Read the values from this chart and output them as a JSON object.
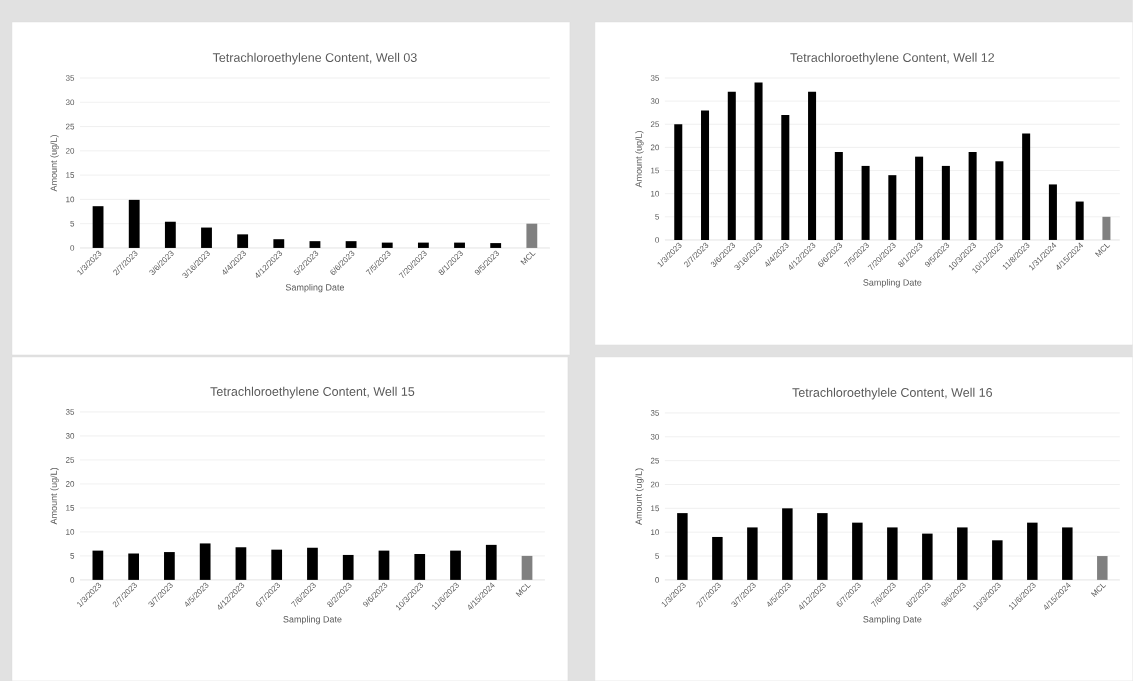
{
  "chart_data": [
    {
      "type": "bar",
      "title": "Tetrachloroethylene Content, Well 03",
      "xlabel": "Sampling Date",
      "ylabel": "Amount (ug/L)",
      "categories": [
        "1/3/2023",
        "2/7/2023",
        "3/6/2023",
        "3/16/2023",
        "4/4/2023",
        "4/12/2023",
        "5/2/2023",
        "6/6/2023",
        "7/5/2023",
        "7/20/2023",
        "8/1/2023",
        "9/5/2023",
        "MCL"
      ],
      "values": [
        8.6,
        9.9,
        5.4,
        4.2,
        2.8,
        1.8,
        1.4,
        1.4,
        1.1,
        1.1,
        1.1,
        1.0,
        5
      ],
      "colors": [
        "#000000",
        "#000000",
        "#000000",
        "#000000",
        "#000000",
        "#000000",
        "#000000",
        "#000000",
        "#000000",
        "#000000",
        "#000000",
        "#000000",
        "#808080"
      ],
      "ylim": [
        0,
        35
      ],
      "yticks": [
        0,
        5,
        10,
        15,
        20,
        25,
        30,
        35
      ],
      "grid": "y"
    },
    {
      "type": "bar",
      "title": "Tetrachloroethylene Content, Well 12",
      "xlabel": "Sampling Date",
      "ylabel": "Amount (ug/L)",
      "categories": [
        "1/3/2023",
        "2/7/2023",
        "3/6/2023",
        "3/16/2023",
        "4/4/2023",
        "4/12/2023",
        "6/6/2023",
        "7/5/2023",
        "7/20/2023",
        "8/1/2023",
        "9/5/2023",
        "10/3/2023",
        "10/12/2023",
        "11/8/2023",
        "1/31/2024",
        "4/15/2024",
        "MCL"
      ],
      "values": [
        25,
        28,
        32,
        34,
        27,
        32,
        19,
        16,
        14,
        18,
        16,
        19,
        17,
        23,
        12,
        8.3,
        5
      ],
      "colors": [
        "#000000",
        "#000000",
        "#000000",
        "#000000",
        "#000000",
        "#000000",
        "#000000",
        "#000000",
        "#000000",
        "#000000",
        "#000000",
        "#000000",
        "#000000",
        "#000000",
        "#000000",
        "#000000",
        "#808080"
      ],
      "ylim": [
        0,
        35
      ],
      "yticks": [
        0,
        5,
        10,
        15,
        20,
        25,
        30,
        35
      ],
      "grid": "y"
    },
    {
      "type": "bar",
      "title": "Tetrachloroethylene Content, Well 15",
      "xlabel": "Sampling Date",
      "ylabel": "Amount (ug/L)",
      "categories": [
        "1/3/2023",
        "2/7/2023",
        "3/7/2023",
        "4/5/2023",
        "4/12/2023",
        "6/7/2023",
        "7/6/2023",
        "8/2/2023",
        "9/6/2023",
        "10/3/2023",
        "11/6/2023",
        "4/15/2024",
        "MCL"
      ],
      "values": [
        6.1,
        5.5,
        5.8,
        7.6,
        6.8,
        6.3,
        6.7,
        5.2,
        6.1,
        5.4,
        6.1,
        7.3,
        5
      ],
      "colors": [
        "#000000",
        "#000000",
        "#000000",
        "#000000",
        "#000000",
        "#000000",
        "#000000",
        "#000000",
        "#000000",
        "#000000",
        "#000000",
        "#000000",
        "#808080"
      ],
      "ylim": [
        0,
        35
      ],
      "yticks": [
        0,
        5,
        10,
        15,
        20,
        25,
        30,
        35
      ],
      "grid": "y"
    },
    {
      "type": "bar",
      "title": "Tetrachloroethylele Content, Well 16",
      "xlabel": "Sampling Date",
      "ylabel": "Amount (ug/L)",
      "categories": [
        "1/3/2023",
        "2/7/2023",
        "3/7/2023",
        "4/5/2023",
        "4/12/2023",
        "6/7/2023",
        "7/6/2023",
        "8/2/2023",
        "9/6/2023",
        "10/3/2023",
        "11/6/2023",
        "4/15/2024",
        "MCL"
      ],
      "values": [
        14,
        9,
        11,
        15,
        14,
        12,
        11,
        9.7,
        11,
        8.3,
        12,
        11,
        5
      ],
      "colors": [
        "#000000",
        "#000000",
        "#000000",
        "#000000",
        "#000000",
        "#000000",
        "#000000",
        "#000000",
        "#000000",
        "#000000",
        "#000000",
        "#000000",
        "#808080"
      ],
      "ylim": [
        0,
        35
      ],
      "yticks": [
        0,
        5,
        10,
        15,
        20,
        25,
        30,
        35
      ],
      "grid": "y"
    }
  ]
}
